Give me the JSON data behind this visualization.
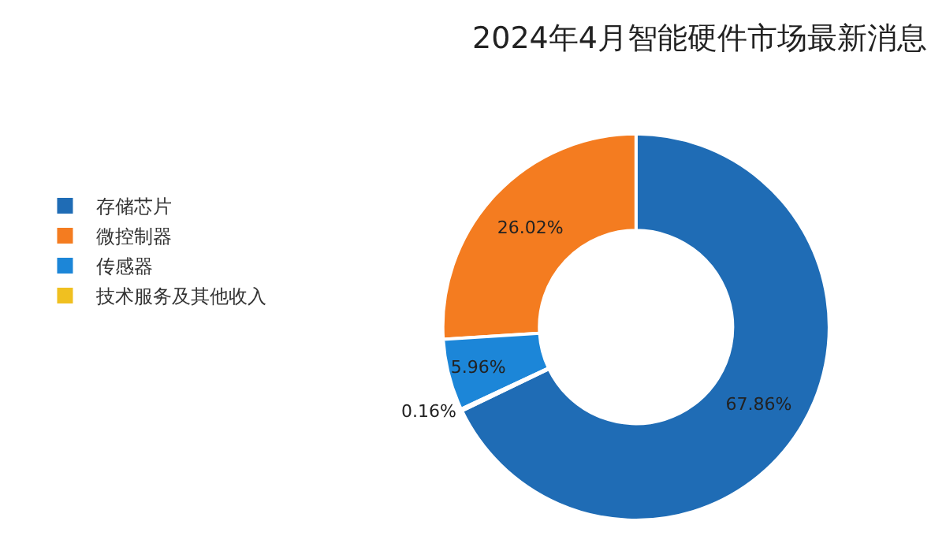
{
  "chart_data": {
    "type": "donut",
    "title": "2024年4月智能硬件市场最新消息",
    "categories": [
      "存储芯片",
      "微控制器",
      "传感器",
      "技术服务及其他收入"
    ],
    "values": [
      67.86,
      26.02,
      5.96,
      0.16
    ],
    "colors": [
      "#1f6cb5",
      "#f47c20",
      "#1c86d8",
      "#f0c020"
    ],
    "value_labels": [
      "67.86%",
      "26.02%",
      "5.96%",
      "0.16%"
    ],
    "legend": "left"
  }
}
